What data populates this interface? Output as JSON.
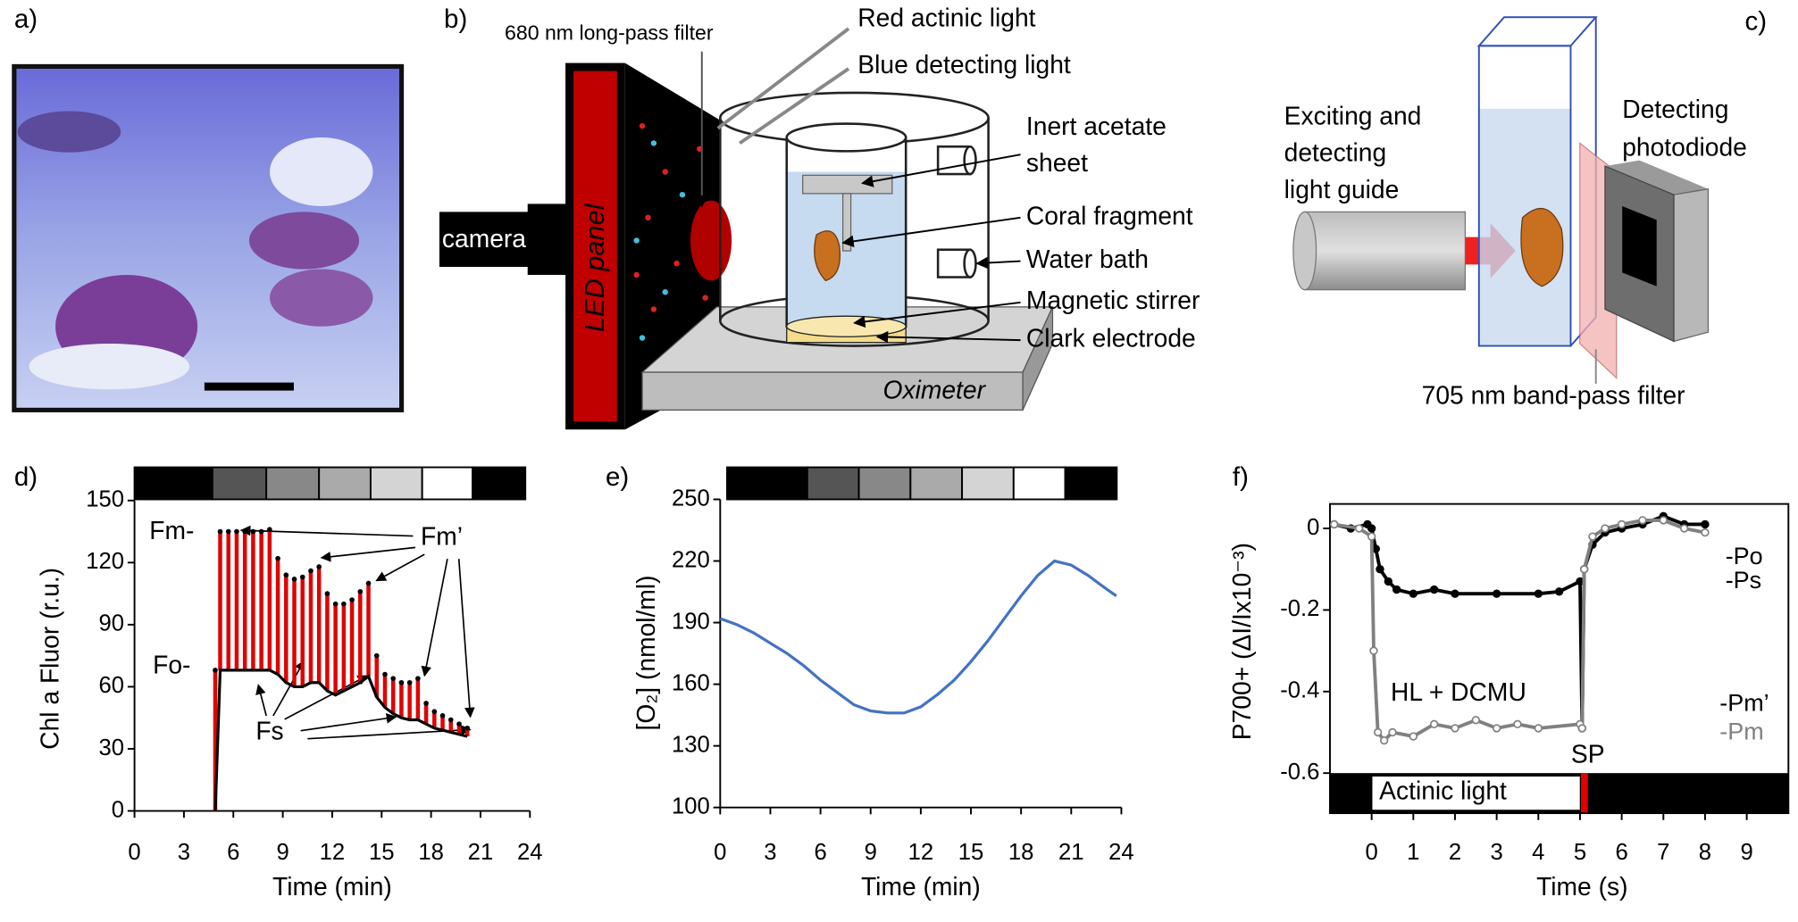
{
  "panel_labels": [
    "a)",
    "b)",
    "c)",
    "d)",
    "e)",
    "f)"
  ],
  "diagram_b": {
    "filter": "680 nm long-pass filter",
    "red_light": "Red actinic light",
    "blue_light": "Blue detecting light",
    "acetate": [
      "Inert acetate",
      "sheet"
    ],
    "coral": "Coral fragment",
    "bath": "Water bath",
    "stirrer": "Magnetic stirrer",
    "electrode": "Clark electrode",
    "camera": "camera",
    "panel": "LED panel",
    "oximeter": "Oximeter"
  },
  "diagram_c": {
    "guide": [
      "Exciting and",
      "detecting",
      "light guide"
    ],
    "diode": [
      "Detecting",
      "photodiode"
    ],
    "bandpass": "705 nm band-pass filter"
  },
  "chart_data": [
    {
      "type": "spike",
      "xlabel": "Time (min)",
      "ylabel": "Chl a Fluor (r.u.)",
      "annotations": [
        "Fm-",
        "Fo-",
        "Fm’",
        "Fs"
      ],
      "x": [
        4.9,
        5.2,
        5.7,
        6.2,
        6.7,
        7.2,
        7.7,
        8.2,
        8.7,
        9.2,
        9.7,
        10.2,
        10.7,
        11.2,
        11.7,
        12.2,
        12.7,
        13.2,
        13.7,
        14.2,
        14.7,
        15.2,
        15.7,
        16.2,
        16.7,
        17.2,
        17.7,
        18.2,
        18.7,
        19.2,
        19.7,
        20.2
      ],
      "series": [
        {
          "color": "#e00000",
          "values": [
            68,
            135,
            135,
            135,
            135,
            135,
            135,
            136,
            122,
            114,
            112,
            113,
            116,
            118,
            105,
            100,
            100,
            102,
            106,
            110,
            75,
            66,
            64,
            62,
            62,
            64,
            52,
            48,
            46,
            44,
            42,
            40
          ]
        },
        {
          "color": "#000000",
          "values": [
            0,
            68,
            68,
            68,
            68,
            68,
            68,
            68,
            66,
            62,
            60,
            60,
            62,
            62,
            58,
            56,
            58,
            60,
            62,
            65,
            55,
            50,
            47,
            45,
            44,
            44,
            42,
            40,
            39,
            38,
            37,
            36
          ]
        }
      ],
      "xlim": [
        0,
        24
      ],
      "xticks": [
        0,
        3,
        6,
        9,
        12,
        15,
        18,
        21,
        24
      ],
      "ylim": [
        0,
        150
      ],
      "yticks": [
        0,
        30,
        60,
        90,
        120,
        150
      ]
    },
    {
      "type": "line",
      "xlabel": "Time (min)",
      "ylabel": "[O₂] (nmol/ml)",
      "x": [
        0,
        1,
        2,
        3,
        4,
        5,
        6,
        7,
        8,
        9,
        10,
        11,
        12,
        13,
        14,
        15,
        16,
        17,
        18,
        19,
        20,
        21,
        22,
        23,
        23.7
      ],
      "series": [
        {
          "color": "#4472c4",
          "values": [
            192,
            189,
            185,
            180,
            175,
            169,
            162,
            156,
            150,
            147,
            146,
            146,
            149,
            155,
            162,
            171,
            181,
            192,
            203,
            213,
            220,
            218,
            213,
            207,
            203
          ]
        }
      ],
      "xlim": [
        0,
        24
      ],
      "xticks": [
        0,
        3,
        6,
        9,
        12,
        15,
        18,
        21,
        24
      ],
      "ylim": [
        100,
        250
      ],
      "yticks": [
        100,
        130,
        160,
        190,
        220,
        250
      ]
    },
    {
      "type": "line",
      "xlabel": "Time (s)",
      "ylabel": "P700+ (ΔI/Ix10⁻³)",
      "annotations": [
        "-Po",
        "-Ps",
        "-Pm’",
        "-Pm",
        "HL + DCMU",
        "SP",
        "Actinic light"
      ],
      "series": [
        {
          "color": "#000000",
          "marker": "filled",
          "x": [
            -0.9,
            -0.5,
            -0.1,
            0,
            0.1,
            0.2,
            0.4,
            0.6,
            1,
            1.5,
            2,
            3,
            4,
            4.5,
            5,
            5.05,
            5.1,
            5.3,
            5.6,
            6,
            6.5,
            7,
            7.5,
            8
          ],
          "values": [
            0.01,
            0,
            0.01,
            0,
            -0.05,
            -0.1,
            -0.13,
            -0.15,
            -0.16,
            -0.15,
            -0.16,
            -0.16,
            -0.16,
            -0.155,
            -0.13,
            -0.49,
            -0.1,
            -0.04,
            -0.01,
            0,
            0.01,
            0.03,
            0.01,
            0.01
          ]
        },
        {
          "color": "#808080",
          "marker": "open",
          "x": [
            -0.9,
            -0.3,
            0,
            0.05,
            0.15,
            0.3,
            0.5,
            1,
            1.5,
            2,
            2.5,
            3,
            3.5,
            4,
            5,
            5.05,
            5.1,
            5.3,
            5.6,
            6,
            6.5,
            7,
            7.5,
            8
          ],
          "values": [
            0.01,
            0,
            -0.02,
            -0.3,
            -0.5,
            -0.52,
            -0.5,
            -0.51,
            -0.48,
            -0.49,
            -0.47,
            -0.49,
            -0.48,
            -0.49,
            -0.48,
            -0.49,
            -0.1,
            -0.02,
            0,
            0.01,
            0.02,
            0.02,
            0,
            -0.01
          ]
        }
      ],
      "xlim": [
        -1,
        10
      ],
      "xticks": [
        0,
        1,
        2,
        3,
        4,
        5,
        6,
        7,
        8,
        9
      ],
      "ylim": [
        -0.6,
        0.06
      ],
      "yticks": [
        -0.6,
        -0.4,
        -0.2,
        0
      ]
    }
  ]
}
